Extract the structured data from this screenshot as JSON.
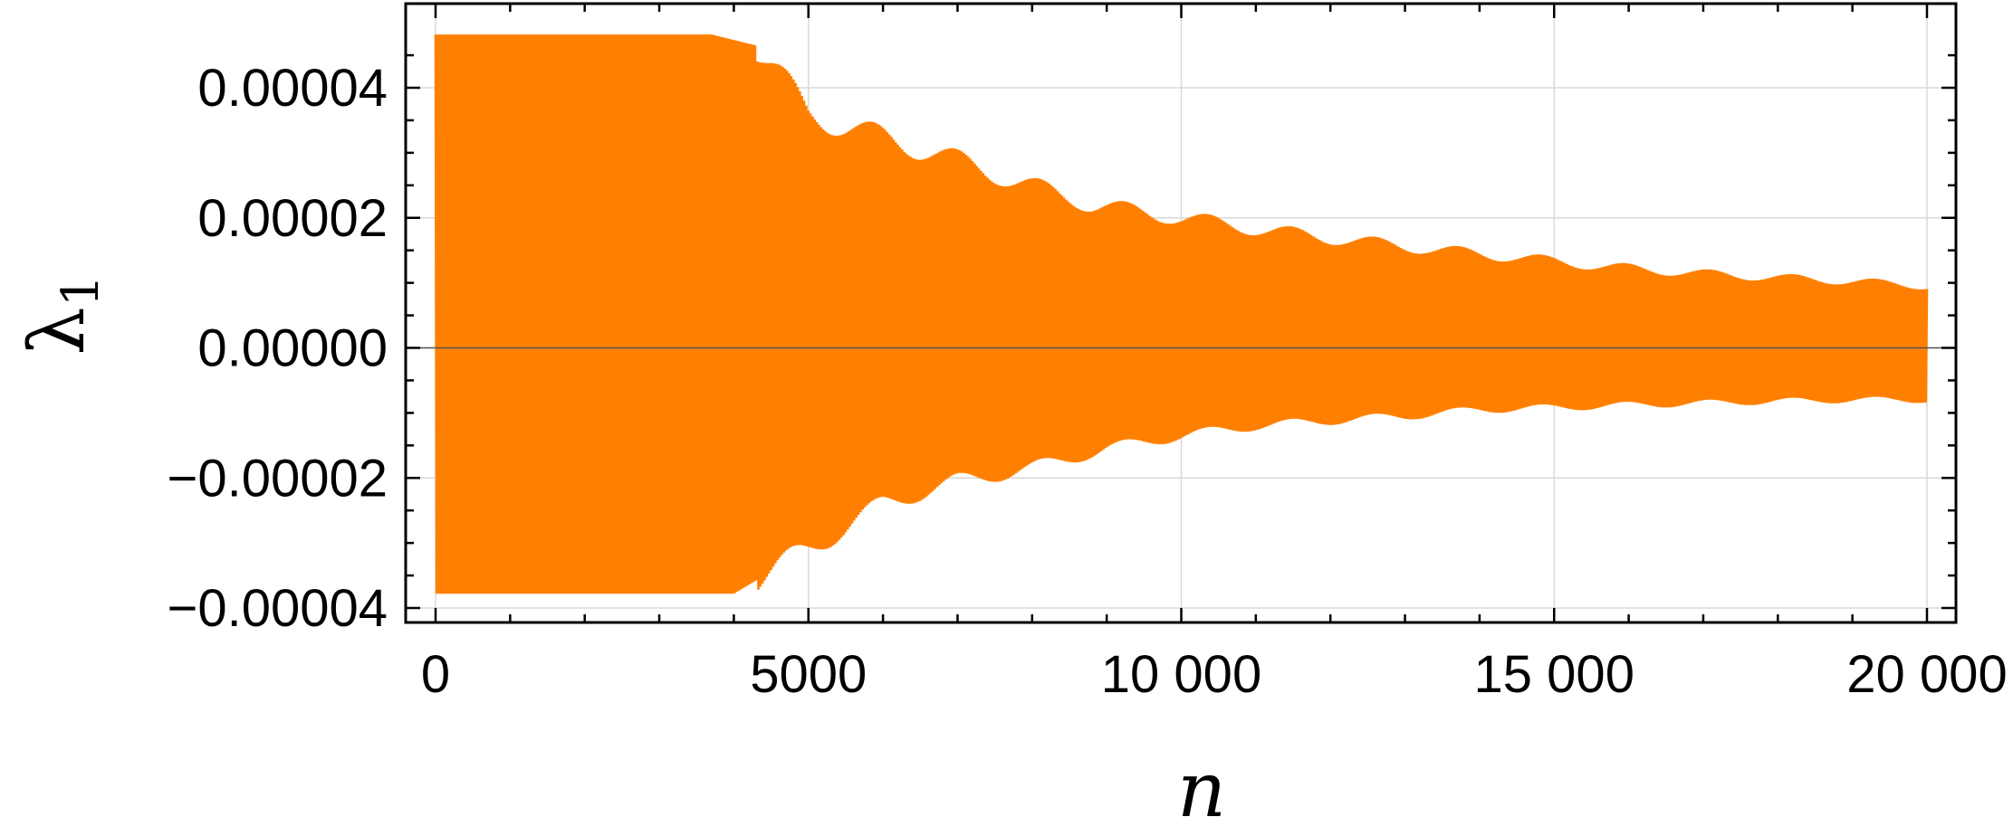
{
  "chart_data": {
    "type": "line",
    "xlabel": "n",
    "ylabel": {
      "symbol": "λ",
      "subscript": "1"
    },
    "xlim": [
      0,
      20000
    ],
    "ylim": [
      -4e-05,
      4e-05
    ],
    "x_ticks": [
      {
        "value": 0,
        "label": "0"
      },
      {
        "value": 5000,
        "label": "5000"
      },
      {
        "value": 10000,
        "label": "10 000"
      },
      {
        "value": 15000,
        "label": "15 000"
      },
      {
        "value": 20000,
        "label": "20 000"
      }
    ],
    "y_ticks": [
      {
        "value": 4e-05,
        "label": "0.00004"
      },
      {
        "value": 2e-05,
        "label": "0.00002"
      },
      {
        "value": 0,
        "label": "0.00000"
      },
      {
        "value": -2e-05,
        "label": "−0.00002"
      },
      {
        "value": -4e-05,
        "label": "−0.00004"
      }
    ],
    "grid": true,
    "series": [
      {
        "color": "#ff8000",
        "style": "dense oscillation between upper and lower envelopes",
        "upper_envelope": {
          "x": [
            0,
            3700,
            4300,
            5000,
            5800,
            6700,
            7700,
            8800,
            10000,
            11200,
            12300,
            13500,
            14600,
            15700,
            16900,
            18000,
            19100,
            20000
          ],
          "y": [
            4.82e-05,
            4.82e-05,
            4.65e-05,
            3.6e-05,
            3.3e-05,
            3e-05,
            2.6e-05,
            2.2e-05,
            2e-05,
            1.8e-05,
            1.65e-05,
            1.5e-05,
            1.38e-05,
            1.25e-05,
            1.15e-05,
            1.08e-05,
            1.02e-05,
            9.5e-06
          ]
        },
        "lower_envelope": {
          "x": [
            0,
            3000,
            4000,
            5000,
            6000,
            7000,
            8000,
            9000,
            10000,
            11000,
            12000,
            13000,
            14000,
            15000,
            16000,
            17000,
            18000,
            19000,
            20000
          ],
          "y": [
            -3.78e-05,
            -3.78e-05,
            -3.78e-05,
            -3.1e-05,
            -2.4e-05,
            -2.05e-05,
            -1.85e-05,
            -1.55e-05,
            -1.35e-05,
            -1.2e-05,
            -1.12e-05,
            -1.05e-05,
            -9.5e-06,
            -9.2e-06,
            -8.8e-06,
            -8.5e-06,
            -8.2e-06,
            -8e-06,
            -8e-06
          ]
        }
      }
    ]
  },
  "colors": {
    "series": "#ff8000",
    "frame": "#000000",
    "grid": "#d9d9d9",
    "zero_line": "#555555"
  }
}
